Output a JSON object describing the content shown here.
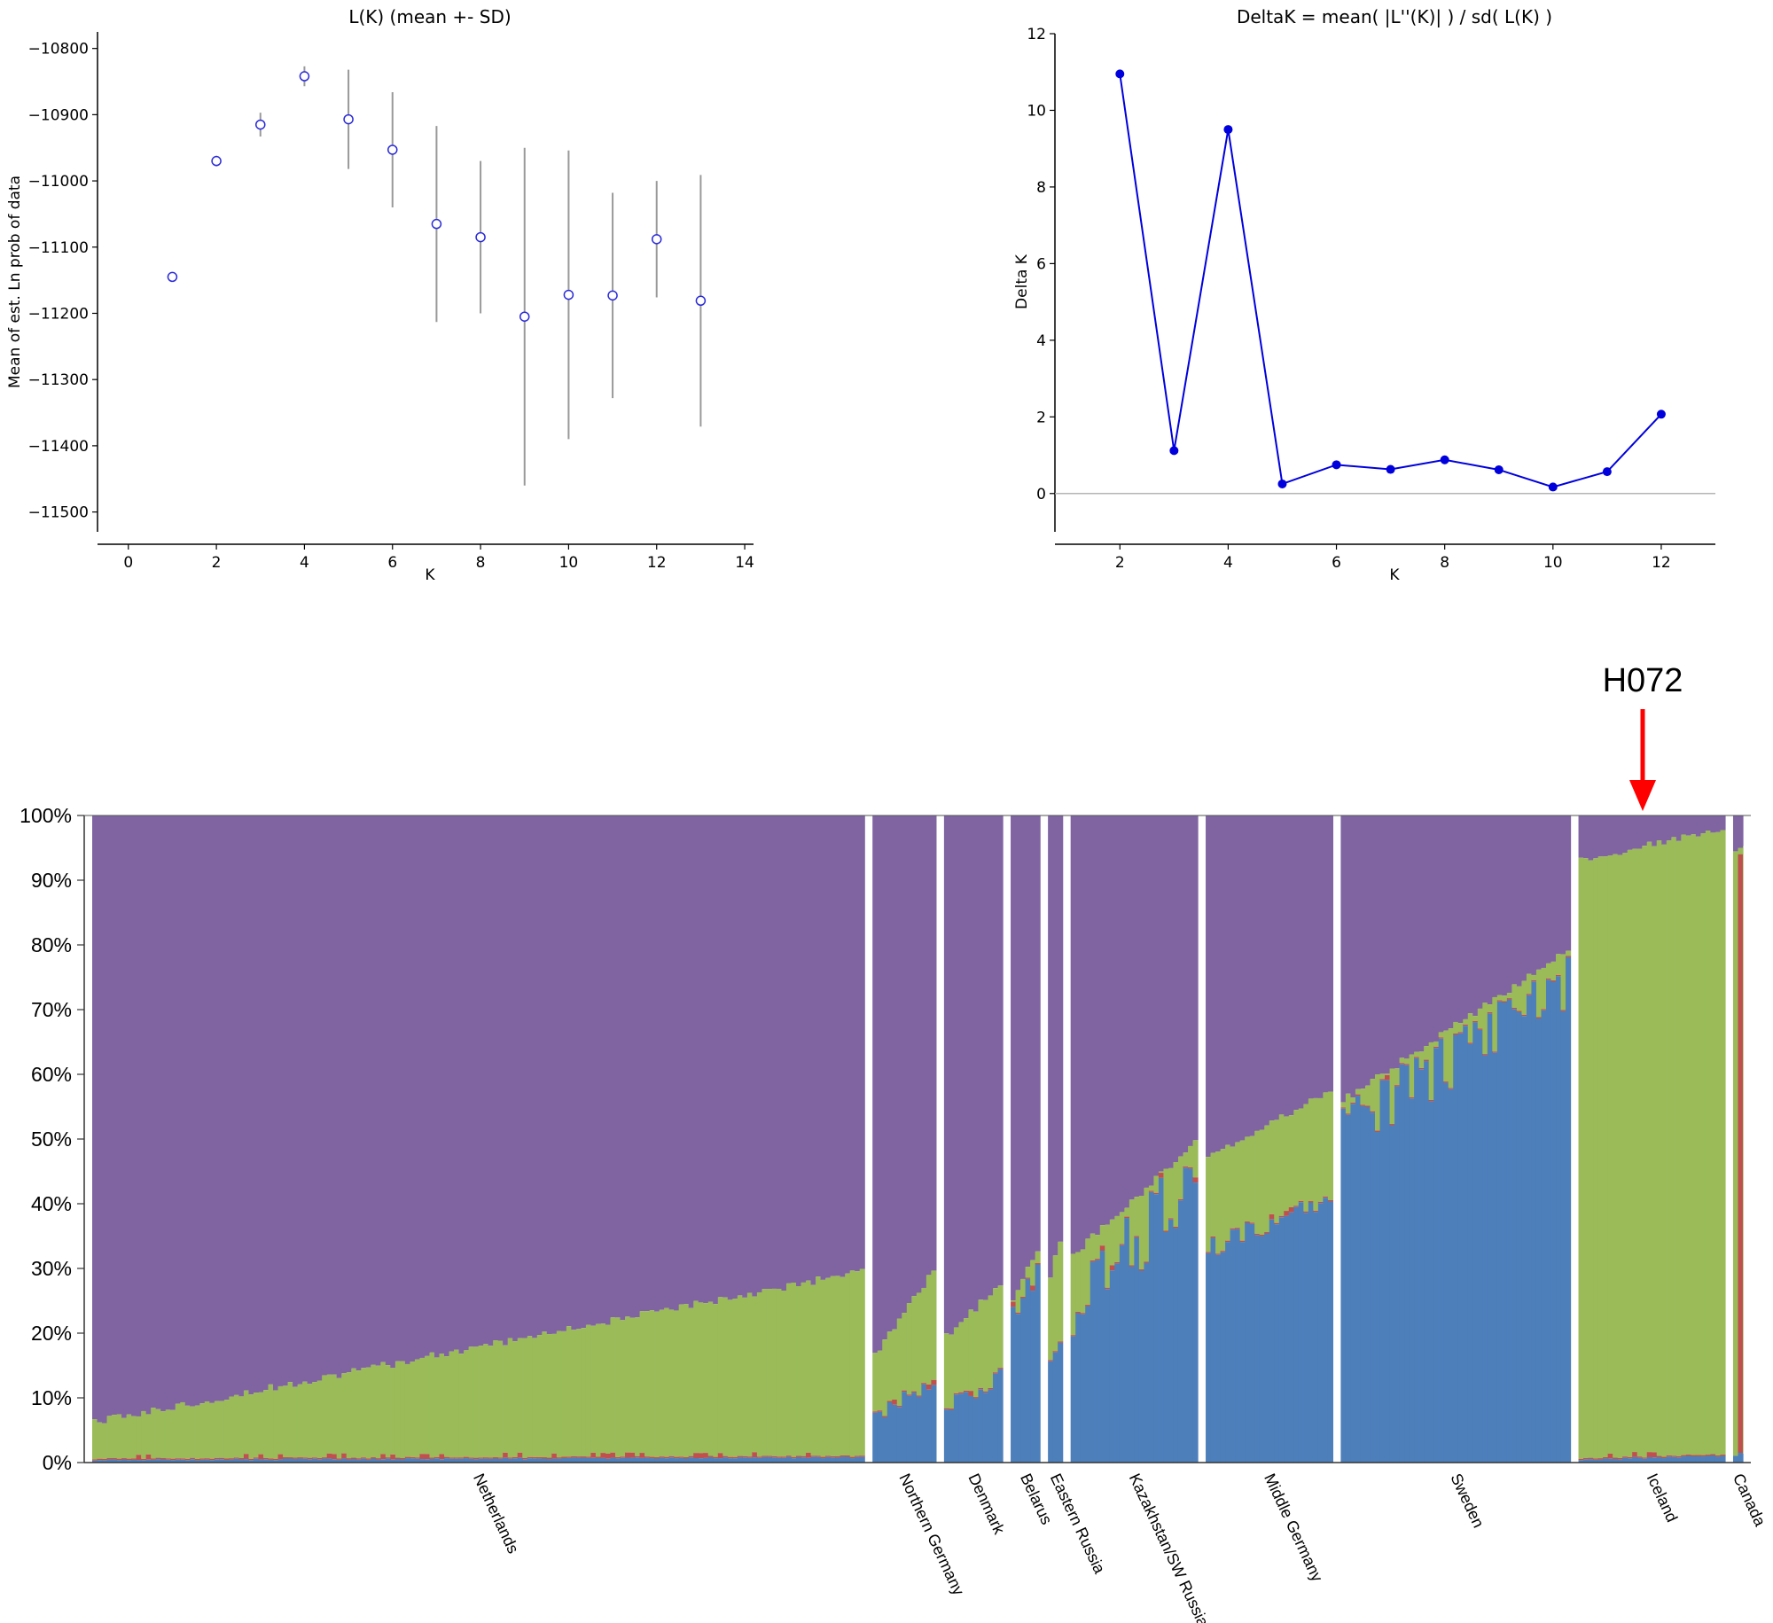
{
  "chart_data": [
    {
      "type": "scatter",
      "title": "L(K) (mean +- SD)",
      "xlabel": "K",
      "ylabel": "Mean of est. Ln prob of data",
      "xlim": [
        -0.7,
        14.2
      ],
      "ylim": [
        -11530,
        -10775
      ],
      "xticks": [
        0,
        2,
        4,
        6,
        8,
        10,
        12,
        14
      ],
      "yticks": [
        -10800,
        -10900,
        -11000,
        -11100,
        -11200,
        -11300,
        -11400,
        -11500
      ],
      "points": [
        {
          "k": 1,
          "mean": -11145,
          "sd": 0
        },
        {
          "k": 2,
          "mean": -10970,
          "sd": 8
        },
        {
          "k": 3,
          "mean": -10915,
          "sd": 18
        },
        {
          "k": 4,
          "mean": -10842,
          "sd": 15
        },
        {
          "k": 5,
          "mean": -10907,
          "sd": 75
        },
        {
          "k": 6,
          "mean": -10953,
          "sd": 87
        },
        {
          "k": 7,
          "mean": -11065,
          "sd": 148
        },
        {
          "k": 8,
          "mean": -11085,
          "sd": 115
        },
        {
          "k": 9,
          "mean": -11205,
          "sd": 255
        },
        {
          "k": 10,
          "mean": -11172,
          "sd": 218
        },
        {
          "k": 11,
          "mean": -11173,
          "sd": 155
        },
        {
          "k": 12,
          "mean": -11088,
          "sd": 88
        },
        {
          "k": 13,
          "mean": -11181,
          "sd": 190
        }
      ]
    },
    {
      "type": "line",
      "title": "DeltaK = mean( |L''(K)| ) / sd( L(K) )",
      "xlabel": "K",
      "ylabel": "Delta K",
      "xlim": [
        0.8,
        13
      ],
      "ylim": [
        -1,
        12
      ],
      "xticks": [
        2,
        4,
        6,
        8,
        10,
        12
      ],
      "yticks": [
        0,
        2,
        4,
        6,
        8,
        10,
        12
      ],
      "x": [
        2,
        3,
        4,
        5,
        6,
        7,
        8,
        9,
        10,
        11,
        12
      ],
      "y": [
        10.95,
        1.12,
        9.5,
        0.25,
        0.75,
        0.63,
        0.88,
        0.62,
        0.17,
        0.57,
        2.07
      ],
      "grid": false
    },
    {
      "type": "bar",
      "stacked": true,
      "yticks": [
        "0%",
        "10%",
        "20%",
        "30%",
        "40%",
        "50%",
        "60%",
        "70%",
        "80%",
        "90%",
        "100%"
      ],
      "ylim": [
        0,
        100
      ],
      "colors": {
        "blue": "#4d7fbb",
        "red": "#c0504d",
        "green": "#9bbb59",
        "purple": "#8064a2"
      },
      "populations": [
        {
          "name": "Netherlands",
          "n": 158,
          "blue": [
            0.4,
            0.8
          ],
          "green_top": [
            6.2,
            29.5
          ]
        },
        {
          "name": "Northern Germany",
          "n": 13,
          "blue": [
            7.5,
            12.0
          ],
          "green_top": [
            16.5,
            29.5
          ]
        },
        {
          "name": "Denmark",
          "n": 12,
          "blue": [
            8.5,
            13.5
          ],
          "green_top": [
            19.5,
            27.5
          ]
        },
        {
          "name": "Belarus",
          "n": 6,
          "blue": [
            23.5,
            29.0
          ],
          "green_top": [
            25.0,
            33.0
          ]
        },
        {
          "name": "Eastern Russia",
          "n": 3,
          "blue": [
            16.0,
            18.5
          ],
          "green_top": [
            29.0,
            34.0
          ]
        },
        {
          "name": "Kazakhstan/SW Russia",
          "n": 26,
          "blue": [
            24.0,
            44.0
          ],
          "green_top": [
            32.0,
            49.5
          ]
        },
        {
          "name": "Middle Germany",
          "n": 26,
          "blue": [
            32.5,
            40.0
          ],
          "green_top": [
            47.0,
            57.5
          ]
        },
        {
          "name": "Sweden",
          "n": 47,
          "blue": [
            53.0,
            77.5
          ],
          "green_top": [
            56.0,
            79.0
          ]
        },
        {
          "name": "Iceland",
          "n": 30,
          "blue": [
            0.5,
            1.0
          ],
          "green_top": [
            93.0,
            98.0
          ]
        },
        {
          "name": "Canada",
          "n": 2,
          "blue": [
            1.0,
            1.5
          ],
          "green_top": [
            94.0,
            95.5
          ]
        }
      ]
    }
  ],
  "annotation": {
    "label": "H072",
    "arrow_color": "#ff0000"
  }
}
